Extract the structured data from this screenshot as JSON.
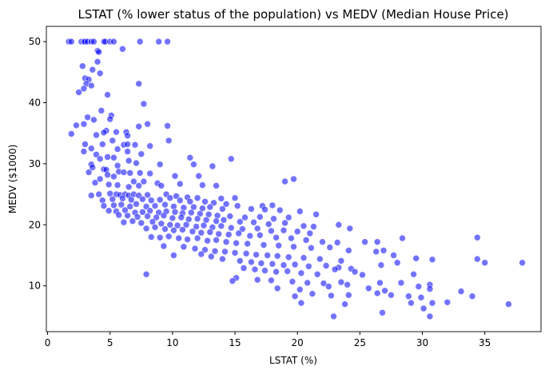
{
  "chart_data": {
    "type": "scatter",
    "title": "LSTAT (% lower status of the population) vs MEDV (Median House Price)",
    "xlabel": "LSTAT (%)",
    "ylabel": "MEDV ($1000)",
    "xlim": [
      -0.1,
      39.5
    ],
    "ylim": [
      2.5,
      52.5
    ],
    "xticks": [
      0,
      5,
      10,
      15,
      20,
      25,
      30,
      35
    ],
    "yticks": [
      10,
      20,
      30,
      40,
      50
    ],
    "grid": false,
    "legend": "none",
    "color": "#0000ff",
    "points": [
      [
        1.7,
        50
      ],
      [
        1.9,
        50
      ],
      [
        2.7,
        50
      ],
      [
        2.9,
        50
      ],
      [
        3.0,
        50
      ],
      [
        3.2,
        50
      ],
      [
        3.5,
        50
      ],
      [
        3.7,
        50
      ],
      [
        4.5,
        50
      ],
      [
        4.6,
        50
      ],
      [
        5.0,
        50
      ],
      [
        5.3,
        50
      ],
      [
        7.4,
        50
      ],
      [
        8.9,
        50
      ],
      [
        9.6,
        50
      ],
      [
        6.0,
        48.8
      ],
      [
        4.0,
        48.5
      ],
      [
        4.1,
        48.3
      ],
      [
        4.0,
        46.7
      ],
      [
        2.8,
        46.0
      ],
      [
        3.6,
        45.4
      ],
      [
        4.2,
        44.8
      ],
      [
        3.0,
        44.0
      ],
      [
        3.3,
        43.8
      ],
      [
        3.1,
        43.1
      ],
      [
        7.3,
        43.1
      ],
      [
        3.5,
        42.8
      ],
      [
        2.9,
        42.3
      ],
      [
        2.5,
        41.7
      ],
      [
        4.8,
        41.3
      ],
      [
        7.7,
        39.8
      ],
      [
        4.3,
        38.7
      ],
      [
        5.1,
        37.9
      ],
      [
        3.2,
        37.6
      ],
      [
        5.0,
        37.3
      ],
      [
        3.7,
        37.2
      ],
      [
        2.9,
        36.5
      ],
      [
        8.0,
        36.5
      ],
      [
        9.6,
        36.2
      ],
      [
        7.3,
        36.1
      ],
      [
        2.3,
        36.3
      ],
      [
        5.5,
        35.2
      ],
      [
        4.7,
        35.4
      ],
      [
        4.5,
        35.1
      ],
      [
        6.3,
        35.2
      ],
      [
        1.9,
        34.9
      ],
      [
        3.9,
        34.7
      ],
      [
        6.4,
        34.6
      ],
      [
        5.2,
        33.8
      ],
      [
        9.7,
        33.8
      ],
      [
        3.0,
        33.2
      ],
      [
        4.4,
        33.2
      ],
      [
        6.1,
        33.1
      ],
      [
        6.4,
        33.2
      ],
      [
        7.0,
        33.1
      ],
      [
        8.2,
        32.9
      ],
      [
        3.5,
        32.5
      ],
      [
        5.6,
        32.4
      ],
      [
        2.9,
        32.0
      ],
      [
        6.4,
        32.0
      ],
      [
        7.5,
        31.6
      ],
      [
        3.9,
        31.5
      ],
      [
        4.8,
        31.1
      ],
      [
        5.3,
        31.0
      ],
      [
        11.4,
        31.0
      ],
      [
        4.2,
        30.8
      ],
      [
        14.7,
        30.8
      ],
      [
        6.5,
        30.5
      ],
      [
        7.1,
        30.1
      ],
      [
        3.5,
        29.9
      ],
      [
        9.0,
        29.9
      ],
      [
        5.6,
        29.7
      ],
      [
        11.7,
        29.9
      ],
      [
        13.2,
        29.6
      ],
      [
        3.6,
        29.4
      ],
      [
        4.5,
        29.1
      ],
      [
        4.7,
        29.0
      ],
      [
        5.7,
        28.7
      ],
      [
        3.3,
        28.6
      ],
      [
        6.1,
        28.6
      ],
      [
        6.6,
        28.5
      ],
      [
        7.4,
        28.5
      ],
      [
        4.8,
        28.2
      ],
      [
        8.2,
        28.4
      ],
      [
        10.2,
        28.0
      ],
      [
        12.1,
        28.0
      ],
      [
        5.3,
        27.9
      ],
      [
        4.2,
        27.5
      ],
      [
        19.7,
        27.5
      ],
      [
        6.9,
        27.1
      ],
      [
        7.7,
        27.1
      ],
      [
        19.0,
        27.1
      ],
      [
        3.8,
        26.9
      ],
      [
        8.8,
        26.8
      ],
      [
        4.9,
        26.6
      ],
      [
        10.6,
        26.7
      ],
      [
        5.6,
        26.5
      ],
      [
        7.3,
        26.4
      ],
      [
        6.5,
        26.2
      ],
      [
        9.1,
        26.4
      ],
      [
        12.4,
        26.5
      ],
      [
        13.5,
        26.4
      ],
      [
        4.1,
        25.0
      ],
      [
        5.0,
        25.1
      ],
      [
        5.5,
        25.0
      ],
      [
        3.5,
        24.8
      ],
      [
        5.8,
        24.9
      ],
      [
        6.2,
        25.0
      ],
      [
        6.5,
        24.8
      ],
      [
        6.9,
        25.0
      ],
      [
        7.3,
        24.8
      ],
      [
        8.0,
        24.9
      ],
      [
        9.5,
        25.0
      ],
      [
        10.3,
        24.7
      ],
      [
        11.2,
        24.5
      ],
      [
        12.0,
        24.4
      ],
      [
        13.9,
        24.3
      ],
      [
        15.0,
        24.4
      ],
      [
        4.4,
        24.0
      ],
      [
        5.2,
        24.2
      ],
      [
        6.0,
        24.3
      ],
      [
        6.7,
        24.1
      ],
      [
        7.6,
        24.2
      ],
      [
        8.3,
        24.0
      ],
      [
        9.0,
        24.1
      ],
      [
        9.8,
        24.4
      ],
      [
        10.6,
        24.0
      ],
      [
        11.4,
        23.8
      ],
      [
        12.6,
        23.8
      ],
      [
        13.3,
        23.6
      ],
      [
        14.3,
        23.4
      ],
      [
        15.2,
        23.1
      ],
      [
        17.2,
        23.1
      ],
      [
        18.0,
        23.2
      ],
      [
        21.5,
        21.7
      ],
      [
        4.5,
        23.1
      ],
      [
        5.3,
        23.2
      ],
      [
        5.9,
        23.3
      ],
      [
        6.6,
        23.0
      ],
      [
        7.1,
        23.4
      ],
      [
        7.9,
        23.0
      ],
      [
        8.6,
        23.1
      ],
      [
        9.4,
        23.3
      ],
      [
        10.1,
        23.0
      ],
      [
        10.9,
        22.8
      ],
      [
        11.7,
        22.9
      ],
      [
        12.4,
        22.7
      ],
      [
        13.0,
        22.9
      ],
      [
        14.0,
        22.6
      ],
      [
        16.3,
        22.6
      ],
      [
        17.4,
        22.5
      ],
      [
        18.6,
        22.4
      ],
      [
        20.2,
        22.2
      ],
      [
        4.9,
        22.3
      ],
      [
        5.5,
        22.2
      ],
      [
        6.2,
        22.4
      ],
      [
        7.0,
        22.0
      ],
      [
        7.6,
        22.1
      ],
      [
        8.2,
        22.3
      ],
      [
        8.9,
        22.0
      ],
      [
        9.5,
        22.2
      ],
      [
        10.2,
        22.1
      ],
      [
        10.8,
        21.9
      ],
      [
        11.5,
        22.0
      ],
      [
        12.2,
        21.8
      ],
      [
        12.9,
        21.7
      ],
      [
        13.6,
        21.5
      ],
      [
        14.6,
        21.4
      ],
      [
        15.8,
        21.2
      ],
      [
        17.0,
        21.3
      ],
      [
        18.1,
        21.0
      ],
      [
        19.3,
        21.2
      ],
      [
        5.7,
        21.6
      ],
      [
        6.4,
        21.5
      ],
      [
        7.2,
        21.3
      ],
      [
        8.0,
        21.4
      ],
      [
        8.7,
        21.2
      ],
      [
        9.3,
        21.5
      ],
      [
        10.0,
        21.1
      ],
      [
        10.7,
        21.2
      ],
      [
        11.3,
        20.9
      ],
      [
        12.0,
        21.0
      ],
      [
        12.7,
        20.8
      ],
      [
        13.5,
        20.6
      ],
      [
        14.1,
        20.8
      ],
      [
        15.4,
        20.5
      ],
      [
        16.5,
        20.4
      ],
      [
        17.7,
        20.1
      ],
      [
        19.0,
        20.3
      ],
      [
        20.5,
        19.8
      ],
      [
        21.3,
        19.7
      ],
      [
        23.3,
        20.0
      ],
      [
        24.2,
        19.4
      ],
      [
        6.1,
        20.4
      ],
      [
        6.8,
        20.6
      ],
      [
        7.5,
        20.3
      ],
      [
        8.4,
        20.5
      ],
      [
        9.1,
        20.2
      ],
      [
        9.8,
        20.0
      ],
      [
        10.4,
        19.9
      ],
      [
        11.1,
        20.0
      ],
      [
        11.9,
        19.7
      ],
      [
        12.5,
        19.9
      ],
      [
        13.2,
        19.6
      ],
      [
        13.9,
        19.8
      ],
      [
        14.7,
        19.5
      ],
      [
        15.6,
        19.3
      ],
      [
        16.8,
        19.4
      ],
      [
        17.9,
        19.0
      ],
      [
        18.9,
        19.1
      ],
      [
        20.0,
        18.9
      ],
      [
        21.0,
        18.6
      ],
      [
        7.9,
        19.4
      ],
      [
        8.6,
        19.6
      ],
      [
        9.4,
        19.3
      ],
      [
        10.1,
        19.1
      ],
      [
        10.8,
        19.2
      ],
      [
        11.6,
        18.9
      ],
      [
        12.3,
        18.7
      ],
      [
        13.0,
        18.8
      ],
      [
        13.7,
        18.5
      ],
      [
        14.5,
        18.4
      ],
      [
        15.3,
        18.6
      ],
      [
        16.2,
        18.2
      ],
      [
        17.0,
        18.3
      ],
      [
        18.3,
        17.9
      ],
      [
        19.5,
        17.8
      ],
      [
        20.7,
        17.5
      ],
      [
        22.0,
        17.2
      ],
      [
        23.2,
        17.1
      ],
      [
        25.4,
        17.2
      ],
      [
        26.4,
        17.2
      ],
      [
        28.4,
        17.8
      ],
      [
        34.4,
        17.9
      ],
      [
        8.3,
        18.0
      ],
      [
        9.0,
        17.9
      ],
      [
        9.7,
        18.1
      ],
      [
        10.5,
        17.8
      ],
      [
        11.2,
        17.6
      ],
      [
        12.0,
        17.8
      ],
      [
        12.8,
        17.4
      ],
      [
        13.5,
        17.5
      ],
      [
        14.3,
        17.2
      ],
      [
        15.1,
        17.0
      ],
      [
        16.0,
        16.9
      ],
      [
        17.3,
        16.7
      ],
      [
        18.5,
        16.6
      ],
      [
        19.7,
        16.4
      ],
      [
        21.1,
        16.2
      ],
      [
        22.6,
        16.3
      ],
      [
        24.1,
        15.8
      ],
      [
        26.9,
        15.8
      ],
      [
        9.3,
        16.5
      ],
      [
        10.9,
        16.4
      ],
      [
        11.8,
        16.1
      ],
      [
        12.6,
        15.9
      ],
      [
        13.4,
        15.7
      ],
      [
        14.2,
        15.6
      ],
      [
        15.0,
        15.4
      ],
      [
        15.9,
        15.3
      ],
      [
        16.7,
        15.1
      ],
      [
        17.6,
        15.0
      ],
      [
        18.4,
        14.9
      ],
      [
        19.3,
        14.7
      ],
      [
        20.5,
        14.6
      ],
      [
        21.8,
        14.4
      ],
      [
        23.5,
        14.1
      ],
      [
        26.3,
        15.6
      ],
      [
        27.7,
        15.0
      ],
      [
        29.5,
        14.5
      ],
      [
        30.8,
        14.3
      ],
      [
        34.4,
        14.4
      ],
      [
        35.0,
        13.8
      ],
      [
        10.1,
        15.0
      ],
      [
        12.3,
        15.2
      ],
      [
        13.1,
        14.8
      ],
      [
        14.0,
        14.4
      ],
      [
        15.4,
        14.1
      ],
      [
        16.3,
        13.9
      ],
      [
        17.1,
        13.7
      ],
      [
        18.0,
        13.6
      ],
      [
        18.9,
        13.4
      ],
      [
        19.8,
        13.5
      ],
      [
        20.9,
        13.2
      ],
      [
        22.3,
        13.3
      ],
      [
        23.3,
        13.0
      ],
      [
        24.3,
        12.8
      ],
      [
        26.7,
        13.4
      ],
      [
        28.0,
        13.8
      ],
      [
        38.0,
        13.8
      ],
      [
        15.7,
        12.9
      ],
      [
        16.6,
        12.7
      ],
      [
        17.4,
        12.5
      ],
      [
        18.3,
        12.3
      ],
      [
        19.2,
        12.4
      ],
      [
        20.3,
        12.1
      ],
      [
        21.6,
        11.9
      ],
      [
        23.0,
        12.7
      ],
      [
        24.6,
        12.3
      ],
      [
        25.2,
        11.8
      ],
      [
        29.3,
        11.9
      ],
      [
        7.9,
        11.9
      ],
      [
        15.1,
        11.3
      ],
      [
        16.8,
        11.0
      ],
      [
        17.9,
        10.9
      ],
      [
        19.6,
        10.7
      ],
      [
        20.8,
        10.5
      ],
      [
        22.1,
        10.4
      ],
      [
        23.5,
        10.6
      ],
      [
        24.0,
        10.2
      ],
      [
        26.6,
        10.5
      ],
      [
        28.3,
        10.5
      ],
      [
        30.6,
        10.2
      ],
      [
        14.8,
        10.8
      ],
      [
        18.4,
        9.6
      ],
      [
        20.2,
        9.4
      ],
      [
        22.5,
        9.9
      ],
      [
        25.7,
        9.6
      ],
      [
        27.0,
        9.2
      ],
      [
        29.7,
        9.9
      ],
      [
        30.6,
        9.5
      ],
      [
        33.1,
        9.1
      ],
      [
        19.8,
        8.3
      ],
      [
        21.2,
        8.7
      ],
      [
        22.7,
        8.4
      ],
      [
        24.1,
        8.5
      ],
      [
        26.4,
        8.8
      ],
      [
        27.5,
        8.5
      ],
      [
        28.9,
        8.3
      ],
      [
        29.9,
        8.1
      ],
      [
        34.0,
        8.3
      ],
      [
        20.3,
        7.2
      ],
      [
        23.8,
        7.0
      ],
      [
        29.1,
        7.2
      ],
      [
        30.8,
        7.2
      ],
      [
        32.0,
        7.3
      ],
      [
        36.9,
        7.0
      ],
      [
        30.1,
        6.3
      ],
      [
        26.8,
        5.6
      ],
      [
        22.9,
        5.0
      ],
      [
        30.6,
        5.0
      ]
    ]
  }
}
